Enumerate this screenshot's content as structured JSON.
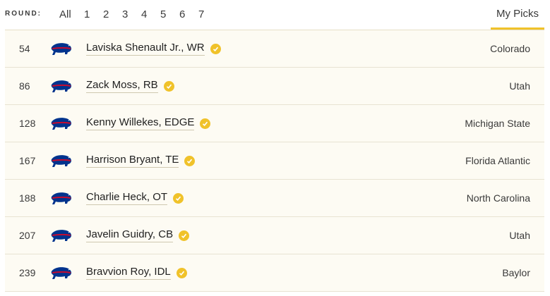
{
  "header": {
    "round_label": "ROUND:",
    "tabs": [
      "All",
      "1",
      "2",
      "3",
      "4",
      "5",
      "6",
      "7"
    ],
    "my_picks_label": "My Picks"
  },
  "picks": [
    {
      "pick": "54",
      "name": "Laviska Shenault Jr., WR",
      "school": "Colorado"
    },
    {
      "pick": "86",
      "name": "Zack Moss, RB",
      "school": "Utah"
    },
    {
      "pick": "128",
      "name": "Kenny Willekes, EDGE",
      "school": "Michigan State"
    },
    {
      "pick": "167",
      "name": "Harrison Bryant, TE",
      "school": "Florida Atlantic"
    },
    {
      "pick": "188",
      "name": "Charlie Heck, OT",
      "school": "North Carolina"
    },
    {
      "pick": "207",
      "name": "Javelin Guidry, CB",
      "school": "Utah"
    },
    {
      "pick": "239",
      "name": "Bravvion Roy, IDL",
      "school": "Baylor"
    }
  ],
  "colors": {
    "accent": "#f0c22a",
    "row_background": "#fdfbf3",
    "team_blue": "#00338d",
    "team_red": "#c60c30"
  },
  "icons": {
    "team_logo": "bills-buffalo-icon",
    "verified": "check-circle-icon"
  }
}
